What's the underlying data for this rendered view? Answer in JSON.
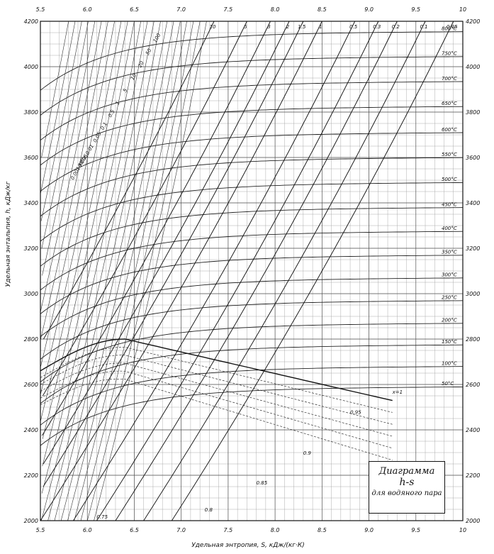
{
  "chart_data": {
    "type": "line",
    "title": "Диаграмма",
    "subtitle": "h-s",
    "note": "для водяного пара",
    "xlabel": "Удельная энтропия, S, кДж/(кг·К)",
    "ylabel": "Удельная энтальпия, h, кДж/кг",
    "xlim": [
      5.5,
      10
    ],
    "ylim": [
      2000,
      4200
    ],
    "grid": true,
    "x_ticks": [
      {
        "v": 5.5,
        "label": "5.5"
      },
      {
        "v": 6.0,
        "label": "6.0"
      },
      {
        "v": 6.5,
        "label": "6.5"
      },
      {
        "v": 7.0,
        "label": "7.0"
      },
      {
        "v": 7.5,
        "label": "7.5"
      },
      {
        "v": 8.0,
        "label": "8.0"
      },
      {
        "v": 8.5,
        "label": "8.5"
      },
      {
        "v": 9.0,
        "label": "9.0"
      },
      {
        "v": 9.5,
        "label": "9.5"
      },
      {
        "v": 10,
        "label": "10"
      }
    ],
    "y_ticks_left": [
      {
        "v": 4200,
        "label": "4200"
      },
      {
        "v": 4000,
        "label": "4000"
      },
      {
        "v": 3800,
        "label": "3800"
      },
      {
        "v": 3600,
        "label": "3600"
      },
      {
        "v": 3400,
        "label": "3400"
      },
      {
        "v": 3200,
        "label": "3200"
      },
      {
        "v": 3000,
        "label": "3000"
      },
      {
        "v": 2800,
        "label": "2800"
      },
      {
        "v": 2600,
        "label": "2600"
      },
      {
        "v": 2400,
        "label": "2400"
      },
      {
        "v": 2200,
        "label": "2200"
      },
      {
        "v": 2000,
        "label": "2000"
      }
    ],
    "isotherms": [
      {
        "label": "800°C",
        "h": 4155
      },
      {
        "label": "750°C",
        "h": 4045
      },
      {
        "label": "700°C",
        "h": 3935
      },
      {
        "label": "650°C",
        "h": 3825
      },
      {
        "label": "600°C",
        "h": 3710
      },
      {
        "label": "550°C",
        "h": 3600
      },
      {
        "label": "500°C",
        "h": 3490
      },
      {
        "label": "450°C",
        "h": 3380
      },
      {
        "label": "400°C",
        "h": 3275
      },
      {
        "label": "350°C",
        "h": 3170
      },
      {
        "label": "300°C",
        "h": 3070
      },
      {
        "label": "250°C",
        "h": 2970
      },
      {
        "label": "200°C",
        "h": 2870
      },
      {
        "label": "150°C",
        "h": 2775
      },
      {
        "label": "100°C",
        "h": 2680
      },
      {
        "label": "50°C",
        "h": 2590
      }
    ],
    "isobars": [
      {
        "label": "10",
        "s_top": 7.35
      },
      {
        "label": "5",
        "s_top": 7.7
      },
      {
        "label": "3",
        "s_top": 7.95
      },
      {
        "label": "2",
        "s_top": 8.15
      },
      {
        "label": "1.5",
        "s_top": 8.3
      },
      {
        "label": "1",
        "s_top": 8.5
      },
      {
        "label": "0.5",
        "s_top": 8.85
      },
      {
        "label": "0.3",
        "s_top": 9.1
      },
      {
        "label": "0.2",
        "s_top": 9.3
      },
      {
        "label": "0.1",
        "s_top": 9.6
      },
      {
        "label": "0.05",
        "s_top": 9.9
      }
    ],
    "dryness_lines": [
      {
        "label": "x=1"
      },
      {
        "label": "0.95"
      },
      {
        "label": "0.9"
      },
      {
        "label": "0.85"
      },
      {
        "label": "0.8"
      },
      {
        "label": "0.75"
      }
    ],
    "left_pressure_labels": [
      "0.001 МПа",
      "0.005",
      "0.01",
      "0.05",
      "0.1",
      "0.5",
      "1",
      "5",
      "10",
      "20",
      "50",
      "100"
    ]
  }
}
